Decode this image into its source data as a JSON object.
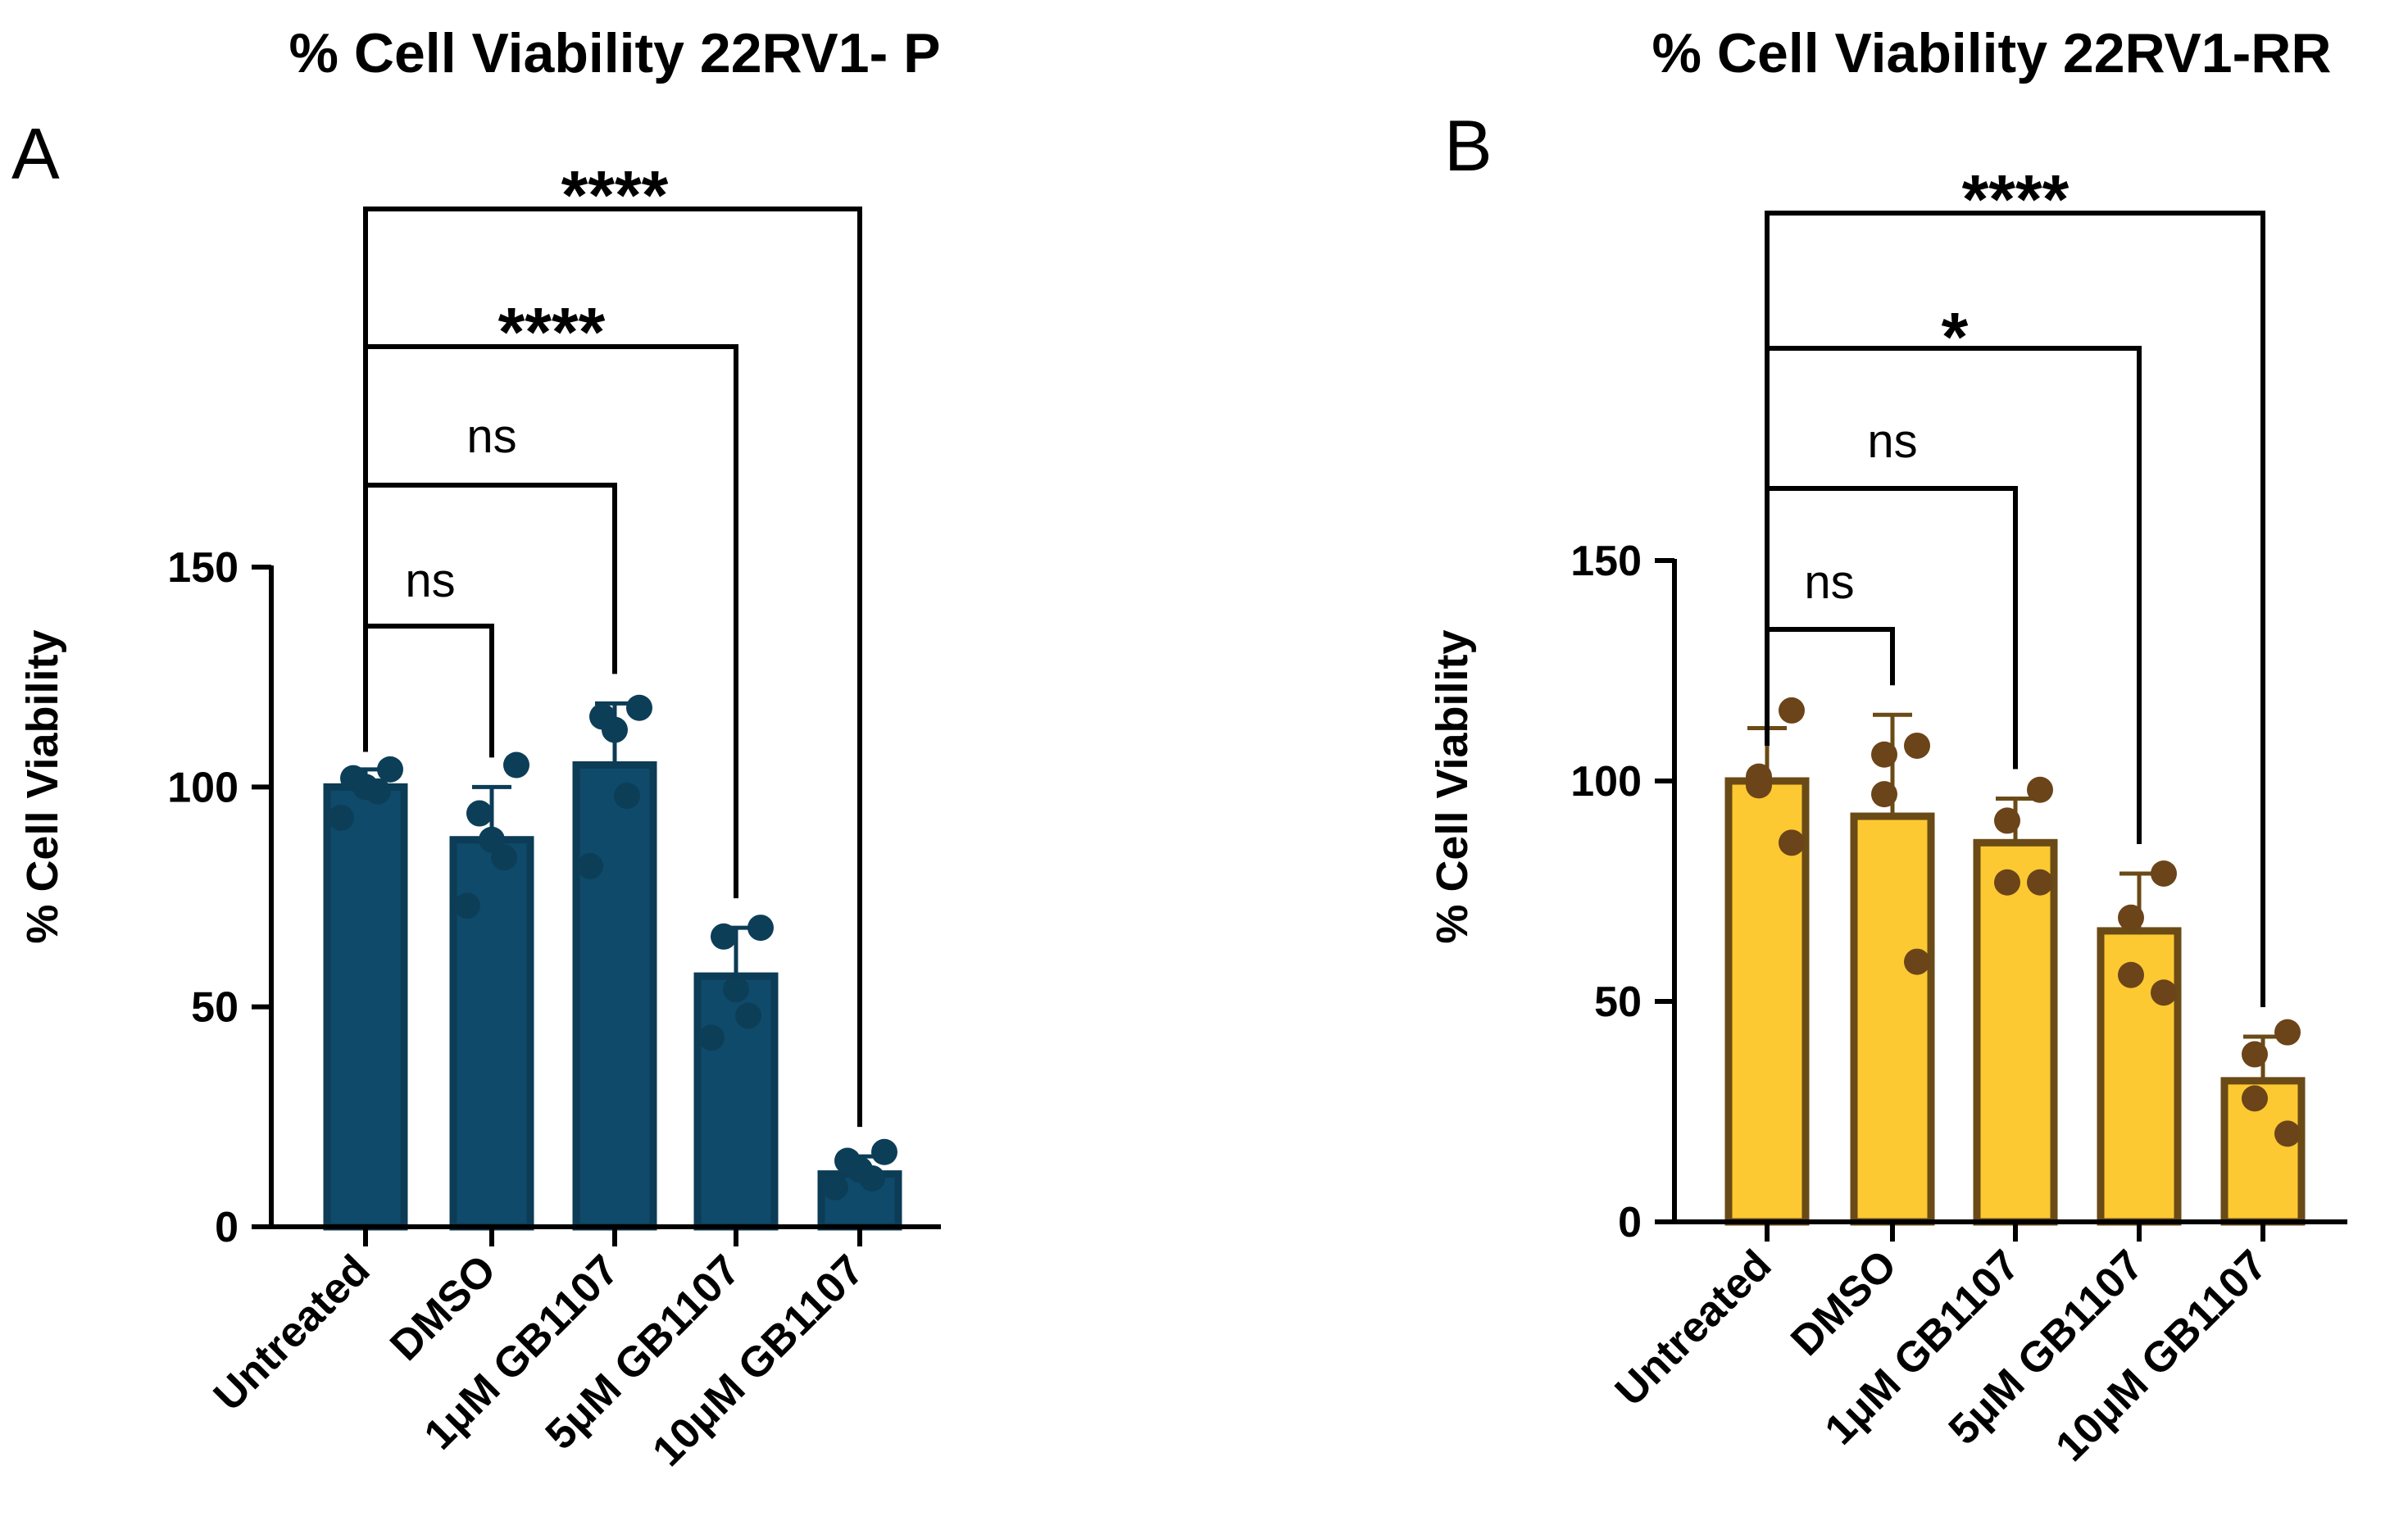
{
  "chart_data": [
    {
      "type": "bar",
      "panel_label": "A",
      "title": "% Cell Viability 22RV1- P",
      "ylabel": "% Cell Viability",
      "xlabel": "",
      "ylim": [
        0,
        150
      ],
      "yticks": [
        "0",
        "50",
        "100",
        "150"
      ],
      "categories": [
        "Untreated",
        "DMSO",
        "1μM GB1107",
        "5μM GB1107",
        "10μM GB1107"
      ],
      "values": [
        100,
        88,
        105,
        57,
        12
      ],
      "error_sd": [
        4,
        12,
        14,
        11,
        4
      ],
      "points": [
        [
          104,
          102,
          100,
          99,
          93
        ],
        [
          105,
          94,
          88,
          84,
          73
        ],
        [
          118,
          116,
          113,
          98,
          82
        ],
        [
          68,
          66,
          54,
          48,
          43
        ],
        [
          17,
          15,
          13,
          11,
          9
        ]
      ],
      "bar_color": "#0f4a6a",
      "bar_edge_color": "#0c3c56",
      "point_color": "#0d3e58",
      "comparisons": [
        {
          "from": "Untreated",
          "to": "DMSO",
          "label": "ns"
        },
        {
          "from": "Untreated",
          "to": "1μM GB1107",
          "label": "ns"
        },
        {
          "from": "Untreated",
          "to": "5μM GB1107",
          "label": "****"
        },
        {
          "from": "Untreated",
          "to": "10μM GB1107",
          "label": "****"
        }
      ]
    },
    {
      "type": "bar",
      "panel_label": "B",
      "title": "% Cell Viability 22RV1-RR",
      "ylabel": "% Cell Viability",
      "xlabel": "",
      "ylim": [
        0,
        150
      ],
      "yticks": [
        "0",
        "50",
        "100",
        "150"
      ],
      "categories": [
        "Untreated",
        "DMSO",
        "1μM GB1107",
        "5μM GB1107",
        "10μM GB1107"
      ],
      "values": [
        100,
        92,
        86,
        66,
        32
      ],
      "error_sd": [
        12,
        23,
        10,
        13,
        10
      ],
      "points": [
        [
          116,
          101,
          99,
          86
        ],
        [
          108,
          106,
          97,
          59
        ],
        [
          98,
          91,
          77,
          77
        ],
        [
          79,
          69,
          56,
          52
        ],
        [
          43,
          38,
          28,
          20
        ]
      ],
      "bar_color": "#fcc932",
      "bar_edge_color": "#6a4a16",
      "point_color": "#6b4419",
      "comparisons": [
        {
          "from": "Untreated",
          "to": "DMSO",
          "label": "ns"
        },
        {
          "from": "Untreated",
          "to": "1μM GB1107",
          "label": "ns"
        },
        {
          "from": "Untreated",
          "to": "5μM GB1107",
          "label": "*"
        },
        {
          "from": "Untreated",
          "to": "10μM GB1107",
          "label": "****"
        }
      ]
    }
  ]
}
